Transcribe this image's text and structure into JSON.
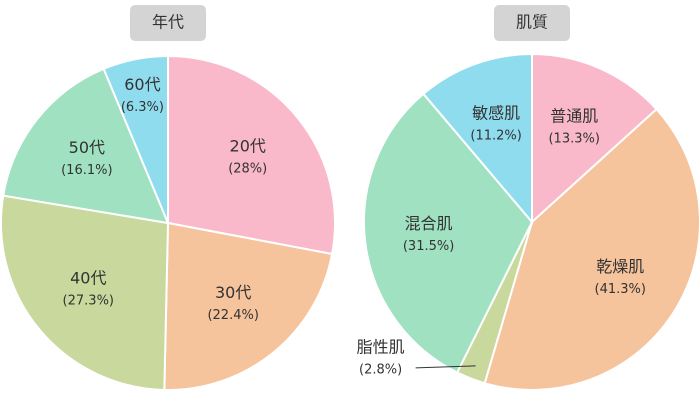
{
  "chart_data": [
    {
      "type": "pie",
      "title": "年代",
      "categories": [
        "20代",
        "30代",
        "40代",
        "50代",
        "60代"
      ],
      "values": [
        28,
        22.4,
        27.3,
        16.1,
        6.3
      ],
      "value_labels": [
        "(28%)",
        "(22.4%)",
        "(27.3%)",
        "(16.1%)",
        "(6.3%)"
      ],
      "colors": [
        "#f9b9cb",
        "#f5c39c",
        "#c9d89c",
        "#9fe1c0",
        "#8fdcef"
      ]
    },
    {
      "type": "pie",
      "title": "肌質",
      "categories": [
        "普通肌",
        "乾燥肌",
        "脂性肌",
        "混合肌",
        "敏感肌"
      ],
      "values": [
        13.3,
        41.3,
        2.8,
        31.5,
        11.2
      ],
      "value_labels": [
        "(13.3%)",
        "(41.3%)",
        "(2.8%)",
        "(31.5%)",
        "(11.2%)"
      ],
      "colors": [
        "#f9b9cb",
        "#f5c39c",
        "#c9d89c",
        "#9fe1c0",
        "#8fdcef"
      ]
    }
  ]
}
